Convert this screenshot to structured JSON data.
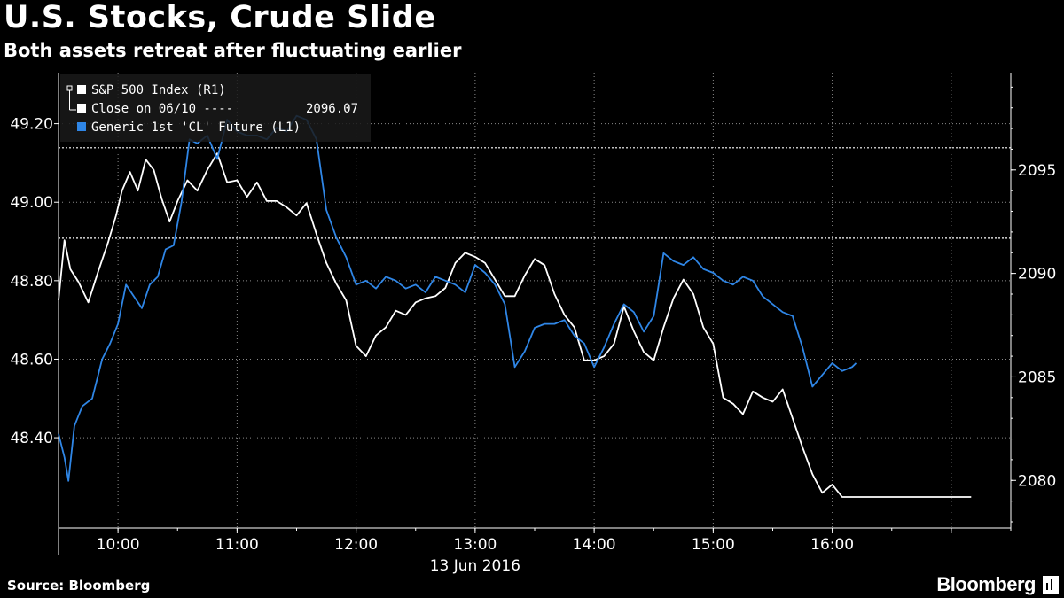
{
  "title": "U.S. Stocks, Crude Slide",
  "subtitle": "Both assets retreat after fluctuating earlier",
  "source": "Source: Bloomberg",
  "brand": "Bloomberg",
  "colors": {
    "sp500": "#ffffff",
    "crude": "#2f86e6",
    "background": "#000000",
    "grid": "#8a8a8a"
  },
  "chart_data": {
    "type": "line",
    "title": "",
    "xlabel": "13 Jun 2016",
    "x_ticks": [
      "10:00",
      "11:00",
      "12:00",
      "13:00",
      "14:00",
      "15:00",
      "16:00"
    ],
    "x_range": [
      "09:30",
      "17:30"
    ],
    "y_left": {
      "label": "",
      "ticks": [
        "48.40",
        "48.60",
        "48.80",
        "49.00",
        "49.20"
      ],
      "range": [
        48.17,
        49.33
      ]
    },
    "y_right": {
      "label": "",
      "ticks": [
        "2080",
        "2085",
        "2090",
        "2095"
      ],
      "range": [
        2077.7,
        2099.7
      ]
    },
    "grid": true,
    "legend": {
      "placement": "top-left",
      "entries": [
        {
          "label": "S&P 500 Index  (R1)",
          "color": "#ffffff"
        },
        {
          "label": "Close on 06/10 ----",
          "value": "2096.07",
          "color": "#ffffff"
        },
        {
          "label": "Generic 1st 'CL' Future  (L1)",
          "color": "#2f86e6"
        }
      ]
    },
    "reference_lines": [
      {
        "name": "Close on 06/10",
        "axis": "right",
        "value": 2096.07
      },
      {
        "name": "S&P 500 level marker",
        "axis": "right",
        "value": 2091.7
      }
    ],
    "series": [
      {
        "name": "S&P 500 Index",
        "axis": "right",
        "color": "#ffffff",
        "points": [
          [
            "09:30",
            2088.7
          ],
          [
            "09:33",
            2091.6
          ],
          [
            "09:36",
            2090.2
          ],
          [
            "09:40",
            2089.6
          ],
          [
            "09:45",
            2088.6
          ],
          [
            "09:50",
            2090.1
          ],
          [
            "09:55",
            2091.5
          ],
          [
            "09:59",
            2092.8
          ],
          [
            "10:02",
            2094.0
          ],
          [
            "10:06",
            2094.9
          ],
          [
            "10:10",
            2094.0
          ],
          [
            "10:14",
            2095.5
          ],
          [
            "10:18",
            2095.0
          ],
          [
            "10:22",
            2093.6
          ],
          [
            "10:26",
            2092.5
          ],
          [
            "10:30",
            2093.5
          ],
          [
            "10:35",
            2094.5
          ],
          [
            "10:40",
            2094.0
          ],
          [
            "10:45",
            2095.0
          ],
          [
            "10:50",
            2095.8
          ],
          [
            "10:55",
            2094.4
          ],
          [
            "11:00",
            2094.5
          ],
          [
            "11:05",
            2093.7
          ],
          [
            "11:10",
            2094.4
          ],
          [
            "11:15",
            2093.5
          ],
          [
            "11:20",
            2093.5
          ],
          [
            "11:25",
            2093.2
          ],
          [
            "11:30",
            2092.8
          ],
          [
            "11:35",
            2093.4
          ],
          [
            "11:40",
            2091.9
          ],
          [
            "11:45",
            2090.5
          ],
          [
            "11:50",
            2089.5
          ],
          [
            "11:55",
            2088.7
          ],
          [
            "12:00",
            2086.5
          ],
          [
            "12:05",
            2086.0
          ],
          [
            "12:10",
            2087.0
          ],
          [
            "12:15",
            2087.4
          ],
          [
            "12:20",
            2088.2
          ],
          [
            "12:25",
            2088.0
          ],
          [
            "12:30",
            2088.6
          ],
          [
            "12:35",
            2088.8
          ],
          [
            "12:40",
            2088.9
          ],
          [
            "12:45",
            2089.3
          ],
          [
            "12:50",
            2090.5
          ],
          [
            "12:55",
            2091.0
          ],
          [
            "13:00",
            2090.8
          ],
          [
            "13:05",
            2090.5
          ],
          [
            "13:10",
            2089.7
          ],
          [
            "13:15",
            2088.9
          ],
          [
            "13:20",
            2088.9
          ],
          [
            "13:25",
            2089.9
          ],
          [
            "13:30",
            2090.7
          ],
          [
            "13:35",
            2090.4
          ],
          [
            "13:40",
            2089.0
          ],
          [
            "13:45",
            2088.0
          ],
          [
            "13:50",
            2087.4
          ],
          [
            "13:55",
            2085.8
          ],
          [
            "14:00",
            2085.8
          ],
          [
            "14:05",
            2086.0
          ],
          [
            "14:10",
            2086.6
          ],
          [
            "14:15",
            2088.4
          ],
          [
            "14:20",
            2087.2
          ],
          [
            "14:25",
            2086.2
          ],
          [
            "14:30",
            2085.8
          ],
          [
            "14:35",
            2087.4
          ],
          [
            "14:40",
            2088.8
          ],
          [
            "14:45",
            2089.7
          ],
          [
            "14:50",
            2089.0
          ],
          [
            "14:55",
            2087.4
          ],
          [
            "15:00",
            2086.6
          ],
          [
            "15:05",
            2084.0
          ],
          [
            "15:10",
            2083.7
          ],
          [
            "15:15",
            2083.2
          ],
          [
            "15:20",
            2084.3
          ],
          [
            "15:25",
            2084.0
          ],
          [
            "15:30",
            2083.8
          ],
          [
            "15:35",
            2084.4
          ],
          [
            "15:40",
            2083.0
          ],
          [
            "15:45",
            2081.6
          ],
          [
            "15:50",
            2080.3
          ],
          [
            "15:55",
            2079.4
          ],
          [
            "16:00",
            2079.8
          ],
          [
            "16:05",
            2079.2
          ],
          [
            "16:15",
            2079.2
          ],
          [
            "17:10",
            2079.2
          ]
        ]
      },
      {
        "name": "Generic 1st 'CL' Future",
        "axis": "left",
        "color": "#2f86e6",
        "points": [
          [
            "09:30",
            48.41
          ],
          [
            "09:33",
            48.35
          ],
          [
            "09:35",
            48.29
          ],
          [
            "09:38",
            48.43
          ],
          [
            "09:42",
            48.48
          ],
          [
            "09:47",
            48.5
          ],
          [
            "09:52",
            48.6
          ],
          [
            "09:56",
            48.64
          ],
          [
            "10:00",
            48.69
          ],
          [
            "10:04",
            48.79
          ],
          [
            "10:08",
            48.76
          ],
          [
            "10:12",
            48.73
          ],
          [
            "10:16",
            48.79
          ],
          [
            "10:20",
            48.81
          ],
          [
            "10:24",
            48.88
          ],
          [
            "10:28",
            48.89
          ],
          [
            "10:32",
            49.0
          ],
          [
            "10:36",
            49.16
          ],
          [
            "10:40",
            49.15
          ],
          [
            "10:45",
            49.17
          ],
          [
            "10:50",
            49.11
          ],
          [
            "10:55",
            49.21
          ],
          [
            "11:00",
            49.18
          ],
          [
            "11:05",
            49.17
          ],
          [
            "11:10",
            49.17
          ],
          [
            "11:15",
            49.16
          ],
          [
            "11:20",
            49.19
          ],
          [
            "11:25",
            49.18
          ],
          [
            "11:30",
            49.22
          ],
          [
            "11:35",
            49.21
          ],
          [
            "11:40",
            49.16
          ],
          [
            "11:45",
            48.98
          ],
          [
            "11:50",
            48.91
          ],
          [
            "11:55",
            48.86
          ],
          [
            "12:00",
            48.79
          ],
          [
            "12:05",
            48.8
          ],
          [
            "12:10",
            48.78
          ],
          [
            "12:15",
            48.81
          ],
          [
            "12:20",
            48.8
          ],
          [
            "12:25",
            48.78
          ],
          [
            "12:30",
            48.79
          ],
          [
            "12:35",
            48.77
          ],
          [
            "12:40",
            48.81
          ],
          [
            "12:45",
            48.8
          ],
          [
            "12:50",
            48.79
          ],
          [
            "12:55",
            48.77
          ],
          [
            "13:00",
            48.84
          ],
          [
            "13:05",
            48.82
          ],
          [
            "13:10",
            48.79
          ],
          [
            "13:15",
            48.74
          ],
          [
            "13:20",
            48.58
          ],
          [
            "13:25",
            48.62
          ],
          [
            "13:30",
            48.68
          ],
          [
            "13:35",
            48.69
          ],
          [
            "13:40",
            48.69
          ],
          [
            "13:45",
            48.7
          ],
          [
            "13:50",
            48.66
          ],
          [
            "13:55",
            48.64
          ],
          [
            "14:00",
            48.58
          ],
          [
            "14:05",
            48.63
          ],
          [
            "14:10",
            48.69
          ],
          [
            "14:15",
            48.74
          ],
          [
            "14:20",
            48.72
          ],
          [
            "14:25",
            48.67
          ],
          [
            "14:30",
            48.71
          ],
          [
            "14:35",
            48.87
          ],
          [
            "14:40",
            48.85
          ],
          [
            "14:45",
            48.84
          ],
          [
            "14:50",
            48.86
          ],
          [
            "14:55",
            48.83
          ],
          [
            "15:00",
            48.82
          ],
          [
            "15:05",
            48.8
          ],
          [
            "15:10",
            48.79
          ],
          [
            "15:15",
            48.81
          ],
          [
            "15:20",
            48.8
          ],
          [
            "15:25",
            48.76
          ],
          [
            "15:30",
            48.74
          ],
          [
            "15:35",
            48.72
          ],
          [
            "15:40",
            48.71
          ],
          [
            "15:45",
            48.63
          ],
          [
            "15:50",
            48.53
          ],
          [
            "15:55",
            48.56
          ],
          [
            "16:00",
            48.59
          ],
          [
            "16:05",
            48.57
          ],
          [
            "16:10",
            48.58
          ],
          [
            "16:12",
            48.59
          ]
        ]
      }
    ]
  }
}
